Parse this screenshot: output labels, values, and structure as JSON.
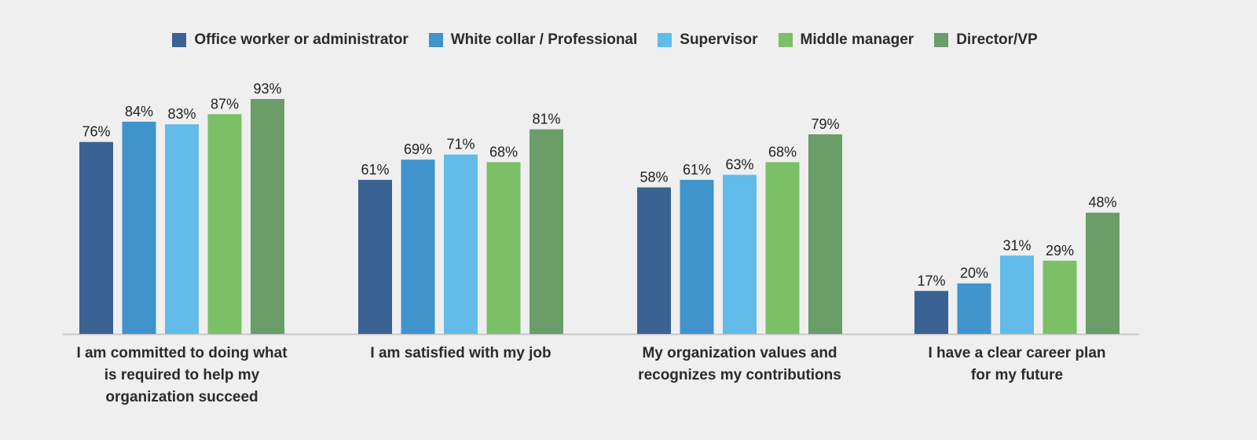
{
  "chart_data": {
    "type": "bar",
    "categories": [
      "I am committed to doing what is required to help my organization succeed",
      "I am satisfied with my job",
      "My organization values and recognizes my contributions",
      "I have a clear career plan for my future"
    ],
    "category_lines": [
      [
        "I am committed to doing what",
        "is required to help my",
        "organization succeed"
      ],
      [
        "I am satisfied with my job"
      ],
      [
        "My organization values and",
        "recognizes my contributions"
      ],
      [
        "I have a clear career plan",
        "for my future"
      ]
    ],
    "series": [
      {
        "name": "Office worker or administrator",
        "color": "#3a6293",
        "values": [
          76,
          61,
          58,
          17
        ],
        "labels": [
          "76%",
          "61%",
          "58%",
          "17%"
        ]
      },
      {
        "name": "White collar / Professional",
        "color": "#4193cc",
        "values": [
          84,
          69,
          61,
          20
        ],
        "labels": [
          "84%",
          "69%",
          "61%",
          "20%"
        ]
      },
      {
        "name": "Supervisor",
        "color": "#62bbe9",
        "values": [
          83,
          71,
          63,
          31
        ],
        "labels": [
          "83%",
          "71%",
          "63%",
          "31%"
        ]
      },
      {
        "name": "Middle manager",
        "color": "#7bbf67",
        "values": [
          87,
          68,
          68,
          29
        ],
        "labels": [
          "87%",
          "68%",
          "68%",
          "29%"
        ]
      },
      {
        "name": "Director/VP",
        "color": "#6a9d68",
        "values": [
          93,
          81,
          79,
          48
        ],
        "labels": [
          "93%",
          "81%",
          "79%",
          "48%"
        ]
      }
    ],
    "ylim": [
      0,
      100
    ],
    "unit": "%",
    "grid": false,
    "legend_position": "top"
  }
}
